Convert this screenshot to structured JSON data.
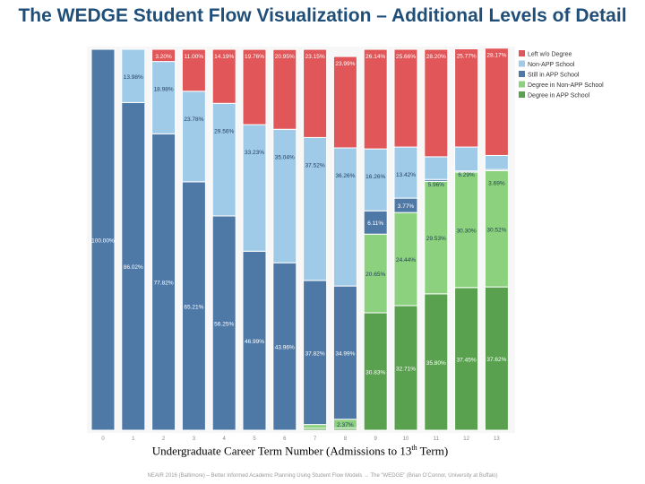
{
  "title": "The WEDGE Student Flow Visualization – Additional Levels of Detail",
  "footer": "NEAIR 2016 (Baltimore) – Better Informed Academic Planning Using Student Flow Models → The “WEDGE” (Brian O’Connor, University at Buffalo)",
  "xlabel": {
    "prefix": "Undergraduate Career Term Number (Admissions to 13",
    "sup": "th",
    "suffix": " Term)"
  },
  "colors": {
    "Left w/o Degree": "#e15759",
    "Non-APP School": "#a0cbe8",
    "Still in APP School": "#4e79a7",
    "Degree in Non-APP School": "#8cd17d",
    "Degree in APP School": "#59a14f"
  },
  "chart_data": {
    "type": "bar",
    "stacked": true,
    "ylim": [
      0,
      100
    ],
    "legend_position": "top-right",
    "categories": [
      "0",
      "1",
      "2",
      "3",
      "4",
      "5",
      "6",
      "7",
      "8",
      "9",
      "10",
      "11",
      "12",
      "13"
    ],
    "series": [
      {
        "name": "Degree in APP School",
        "values": [
          0,
          0,
          0,
          0,
          0,
          0,
          0,
          0.5,
          0.5,
          30.83,
          32.71,
          35.8,
          37.45,
          37.62
        ],
        "labels": [
          "",
          "",
          "",
          "",
          "",
          "",
          "",
          "",
          "",
          "30.83%",
          "32.71%",
          "35.80%",
          "37.45%",
          "37.62%"
        ]
      },
      {
        "name": "Degree in Non-APP School",
        "values": [
          0,
          0,
          0,
          0,
          0,
          0,
          0,
          1.0,
          2.37,
          20.65,
          24.44,
          29.53,
          30.3,
          30.52
        ],
        "labels": [
          "",
          "",
          "",
          "",
          "",
          "",
          "",
          "",
          "2.37%",
          "20.65%",
          "24.44%",
          "29.53%",
          "30.30%",
          "30.52%"
        ]
      },
      {
        "name": "Still in APP School",
        "values": [
          100,
          86.02,
          77.82,
          65.21,
          56.25,
          46.99,
          43.96,
          37.82,
          34.99,
          6.11,
          3.77,
          0.5,
          0.3,
          0.3
        ],
        "labels": [
          "100.00%",
          "86.02%",
          "77.82%",
          "65.21%",
          "56.25%",
          "46.99%",
          "43.96%",
          "37.82%",
          "34.99%",
          "6.11%",
          "3.77%",
          "",
          "",
          ""
        ]
      },
      {
        "name": "Non-APP School",
        "values": [
          0,
          13.98,
          18.98,
          23.78,
          29.56,
          33.23,
          35.04,
          37.52,
          36.26,
          16.26,
          13.42,
          5.96,
          6.29,
          3.69
        ],
        "labels": [
          "",
          "13.98%",
          "18.98%",
          "23.78%",
          "29.56%",
          "33.23%",
          "35.04%",
          "37.52%",
          "36.26%",
          "16.26%",
          "13.42%",
          "5.96%",
          "6.29%",
          "3.69%"
        ]
      },
      {
        "name": "Left w/o Degree",
        "values": [
          0,
          0,
          3.2,
          11.0,
          14.19,
          19.76,
          20.95,
          23.15,
          23.99,
          26.14,
          25.66,
          28.2,
          25.77,
          28.17
        ],
        "labels": [
          "",
          "",
          "3.20%",
          "11.00%",
          "14.19%",
          "19.76%",
          "20.95%",
          "23.15%",
          "23.99%",
          "26.14%",
          "25.66%",
          "28.20%",
          "25.77%",
          "28.17%"
        ]
      }
    ],
    "legend": [
      "Left w/o Degree",
      "Non-APP School",
      "Still in APP School",
      "Degree in Non-APP School",
      "Degree in APP School"
    ],
    "legend_labels": [
      "Left w/o Degree",
      "Non-APP School",
      "Still in APP School",
      "Degree in Non-APP School",
      "Degree in APP School"
    ]
  }
}
